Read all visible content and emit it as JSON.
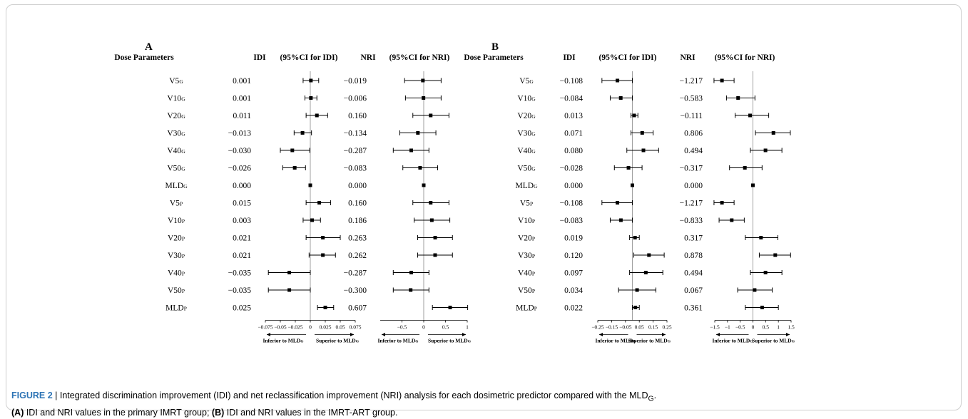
{
  "figure_label": "FIGURE 2",
  "caption": {
    "lead": "FIGURE 2",
    "sep": " | ",
    "text1": "Integrated discrimination improvement (IDI) and net reclassification improvement (NRI) analysis for each dosimetric predictor compared with the MLD",
    "text1_sub": "G",
    "text1_end": ".",
    "part_a_tag": "(A)",
    "part_a_text": " IDI and NRI values in the primary IMRT group; ",
    "part_b_tag": "(B)",
    "part_b_text": " IDI and NRI values in the IMRT-ART group."
  },
  "headers": {
    "dose": "Dose Parameters",
    "idi": "IDI",
    "idi_ci": "(95%CI for IDI)",
    "nri": "NRI",
    "nri_ci": "(95%CI for NRI)"
  },
  "arrows": {
    "left": "Inferior to MLD",
    "right": "Superior to MLD",
    "sub": "G"
  },
  "chart_data": [
    {
      "panel": "A",
      "type": "forest",
      "params": [
        {
          "base": "V5",
          "sub": "G"
        },
        {
          "base": "V10",
          "sub": "G"
        },
        {
          "base": "V20",
          "sub": "G"
        },
        {
          "base": "V30",
          "sub": "G"
        },
        {
          "base": "V40",
          "sub": "G"
        },
        {
          "base": "V50",
          "sub": "G"
        },
        {
          "base": "MLD",
          "sub": "G"
        },
        {
          "base": "V5",
          "sub": "P"
        },
        {
          "base": "V10",
          "sub": "P"
        },
        {
          "base": "V20",
          "sub": "P"
        },
        {
          "base": "V30",
          "sub": "P"
        },
        {
          "base": "V40",
          "sub": "P"
        },
        {
          "base": "V50",
          "sub": "P"
        },
        {
          "base": "MLD",
          "sub": "P"
        }
      ],
      "idi": {
        "labels": [
          "0.001",
          "0.001",
          "0.011",
          "−0.013",
          "−0.030",
          "−0.026",
          "0.000",
          "0.015",
          "0.003",
          "0.021",
          "0.021",
          "−0.035",
          "−0.035",
          "0.025"
        ],
        "values": [
          0.001,
          0.001,
          0.011,
          -0.013,
          -0.03,
          -0.026,
          0.0,
          0.015,
          0.003,
          0.021,
          0.021,
          -0.035,
          -0.035,
          0.025
        ],
        "lower": [
          -0.012,
          -0.009,
          -0.007,
          -0.027,
          -0.05,
          -0.046,
          0.0,
          -0.007,
          -0.012,
          -0.007,
          -0.002,
          -0.07,
          -0.07,
          0.012
        ],
        "upper": [
          0.014,
          0.011,
          0.029,
          0.002,
          -0.001,
          -0.008,
          0.0,
          0.034,
          0.017,
          0.05,
          0.042,
          0.0,
          0.0,
          0.039
        ],
        "xlim": [
          -0.075,
          0.075
        ],
        "ticks": [
          "−0.075",
          "−0.05",
          "−0.025",
          "0",
          "0.025",
          "0.05",
          "0.075"
        ],
        "tick_values": [
          -0.075,
          -0.05,
          -0.025,
          0,
          0.025,
          0.05,
          0.075
        ]
      },
      "nri": {
        "labels": [
          "−0.019",
          "−0.006",
          "0.160",
          "−0.134",
          "−0.287",
          "−0.083",
          "0.000",
          "0.160",
          "0.186",
          "0.263",
          "0.262",
          "−0.287",
          "−0.300",
          "0.607"
        ],
        "values": [
          -0.019,
          -0.006,
          0.16,
          -0.134,
          -0.287,
          -0.083,
          0.0,
          0.16,
          0.186,
          0.263,
          0.262,
          -0.287,
          -0.3,
          0.607
        ],
        "lower": [
          -0.44,
          -0.42,
          -0.25,
          -0.55,
          -0.7,
          -0.48,
          0.0,
          -0.25,
          -0.22,
          -0.14,
          -0.14,
          -0.7,
          -0.7,
          0.2
        ],
        "upper": [
          0.4,
          0.4,
          0.58,
          0.28,
          0.12,
          0.32,
          0.0,
          0.58,
          0.6,
          0.66,
          0.66,
          0.12,
          0.12,
          1.01
        ],
        "xlim": [
          -1.0,
          1.0
        ],
        "ticks": [
          "−0.5",
          "0",
          "0.5",
          "1"
        ],
        "tick_values": [
          -0.5,
          0,
          0.5,
          1
        ]
      }
    },
    {
      "panel": "B",
      "type": "forest",
      "params": [
        {
          "base": "V5",
          "sub": "G"
        },
        {
          "base": "V10",
          "sub": "G"
        },
        {
          "base": "V20",
          "sub": "G"
        },
        {
          "base": "V30",
          "sub": "G"
        },
        {
          "base": "V40",
          "sub": "G"
        },
        {
          "base": "V50",
          "sub": "G"
        },
        {
          "base": "MLD",
          "sub": "G"
        },
        {
          "base": "V5",
          "sub": "P"
        },
        {
          "base": "V10",
          "sub": "P"
        },
        {
          "base": "V20",
          "sub": "P"
        },
        {
          "base": "V30",
          "sub": "P"
        },
        {
          "base": "V40",
          "sub": "P"
        },
        {
          "base": "V50",
          "sub": "P"
        },
        {
          "base": "MLD",
          "sub": "P"
        }
      ],
      "idi": {
        "labels": [
          "−0.108",
          "−0.084",
          "0.013",
          "0.071",
          "0.080",
          "−0.028",
          "0.000",
          "−0.108",
          "−0.083",
          "0.019",
          "0.120",
          "0.097",
          "0.034",
          "0.022"
        ],
        "values": [
          -0.108,
          -0.084,
          0.013,
          0.071,
          0.08,
          -0.028,
          0.0,
          -0.108,
          -0.083,
          0.019,
          0.12,
          0.097,
          0.034,
          0.022
        ],
        "lower": [
          -0.22,
          -0.16,
          -0.01,
          -0.01,
          -0.04,
          -0.13,
          0.0,
          -0.22,
          -0.16,
          -0.02,
          0.01,
          -0.02,
          -0.1,
          0.0
        ],
        "upper": [
          0.0,
          0.0,
          0.04,
          0.15,
          0.19,
          0.07,
          0.0,
          0.0,
          0.0,
          0.05,
          0.23,
          0.22,
          0.17,
          0.05
        ],
        "xlim": [
          -0.25,
          0.25
        ],
        "ticks": [
          "−0.25",
          "−0.15",
          "−0.05",
          "0.05",
          "0.15",
          "0.25"
        ],
        "tick_values": [
          -0.25,
          -0.15,
          -0.05,
          0.05,
          0.15,
          0.25
        ]
      },
      "nri": {
        "labels": [
          "−1.217",
          "−0.583",
          "−0.111",
          "0.806",
          "0.494",
          "−0.317",
          "0.000",
          "−1.217",
          "−0.833",
          "0.317",
          "0.878",
          "0.494",
          "0.067",
          "0.361"
        ],
        "values": [
          -1.217,
          -0.583,
          -0.111,
          0.806,
          0.494,
          -0.317,
          0.0,
          -1.217,
          -0.833,
          0.317,
          0.878,
          0.494,
          0.067,
          0.361
        ],
        "lower": [
          -1.53,
          -1.04,
          -0.7,
          0.1,
          -0.1,
          -0.92,
          0.0,
          -1.53,
          -1.33,
          -0.3,
          0.25,
          -0.1,
          -0.6,
          -0.3
        ],
        "upper": [
          -0.74,
          0.08,
          0.62,
          1.47,
          1.14,
          0.36,
          0.0,
          -0.74,
          -0.34,
          0.98,
          1.48,
          1.14,
          0.76,
          1.0
        ],
        "xlim": [
          -1.5,
          1.5
        ],
        "ticks": [
          "−1.5",
          "−1",
          "−0.5",
          "0",
          "0.5",
          "1",
          "1.5"
        ],
        "tick_values": [
          -1.5,
          -1,
          -0.5,
          0,
          0.5,
          1,
          1.5
        ]
      }
    }
  ]
}
